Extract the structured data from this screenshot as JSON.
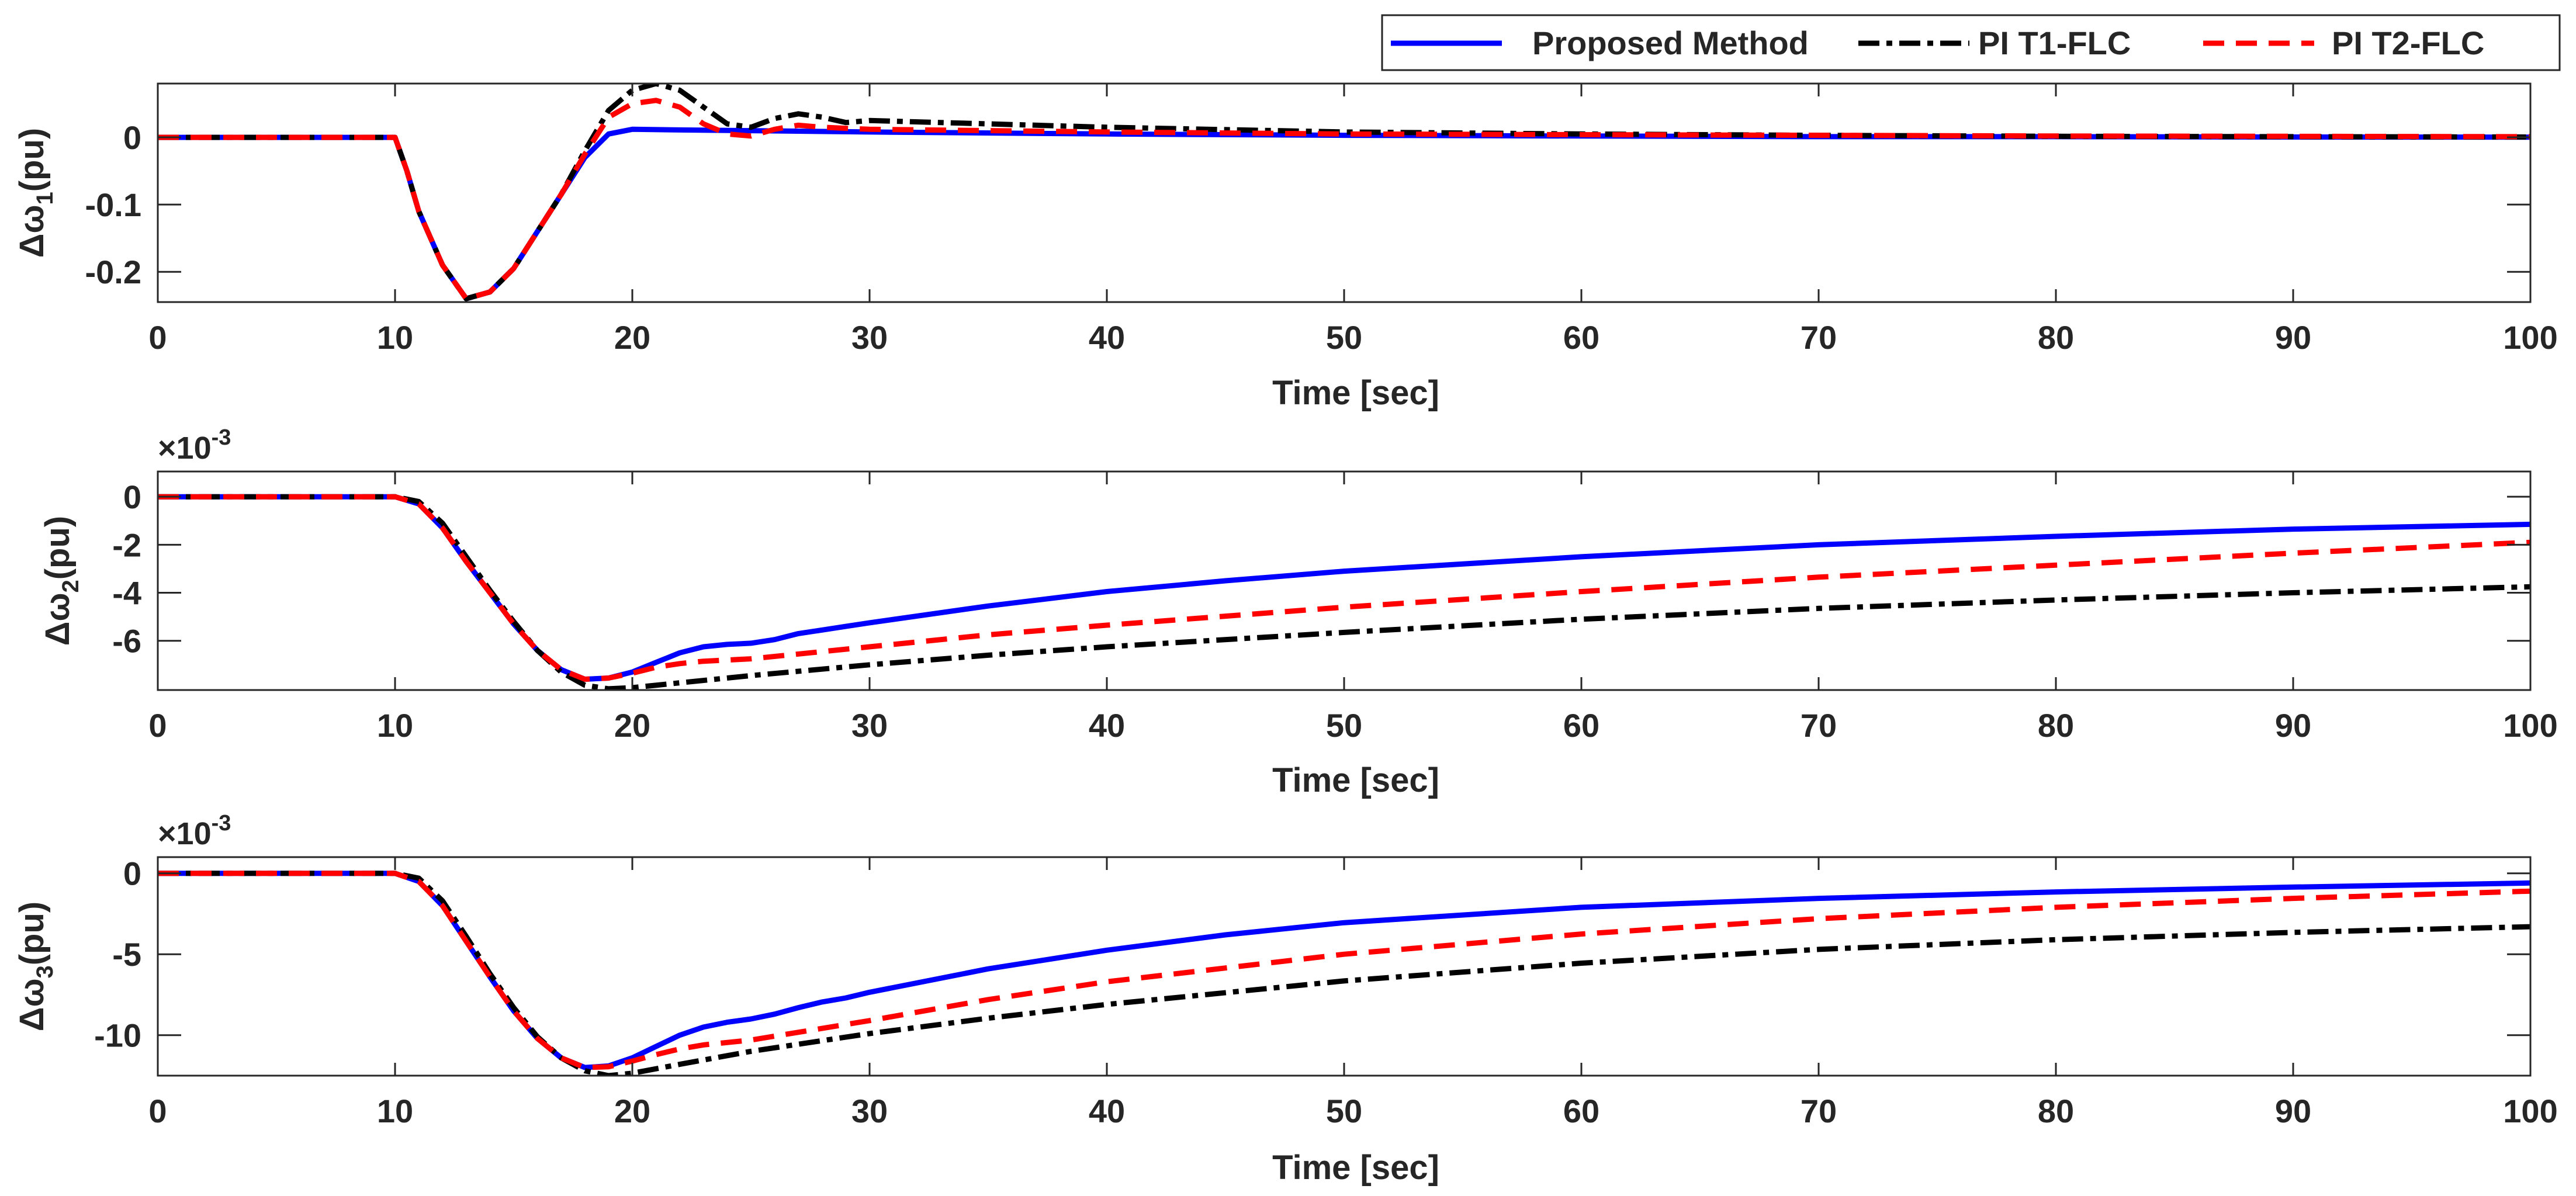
{
  "legend": [
    {
      "label": "Proposed Method",
      "color": "#0000ff",
      "dash": "solid"
    },
    {
      "label": "PI T1-FLC",
      "color": "#000000",
      "dash": "dashdot"
    },
    {
      "label": "PI T2-FLC",
      "color": "#ff0000",
      "dash": "dashed"
    }
  ],
  "chart_data": [
    {
      "type": "line",
      "xlabel": "Time [sec]",
      "ylabel_main": "Δω",
      "ylabel_sub": "1",
      "ylabel_unit": "(pu)",
      "exponent_label": "",
      "xlim": [
        0,
        100
      ],
      "ylim": [
        -0.245,
        0.08
      ],
      "xticks": [
        0,
        10,
        20,
        30,
        40,
        50,
        60,
        70,
        80,
        90,
        100
      ],
      "yticks": [
        0,
        -0.1,
        -0.2
      ],
      "ytick_labels": [
        "0",
        "-0.1",
        "-0.2"
      ],
      "series": [
        {
          "name": "Proposed Method",
          "color": "#0000ff",
          "dash": "solid",
          "points": [
            [
              0,
              0
            ],
            [
              10,
              0
            ],
            [
              10.5,
              -0.05
            ],
            [
              11,
              -0.11
            ],
            [
              12,
              -0.19
            ],
            [
              13,
              -0.24
            ],
            [
              14,
              -0.23
            ],
            [
              15,
              -0.195
            ],
            [
              16,
              -0.14
            ],
            [
              17,
              -0.085
            ],
            [
              18,
              -0.03
            ],
            [
              19,
              0.005
            ],
            [
              20,
              0.012
            ],
            [
              22,
              0.011
            ],
            [
              25,
              0.01
            ],
            [
              30,
              0.008
            ],
            [
              40,
              0.005
            ],
            [
              50,
              0.003
            ],
            [
              60,
              0.002
            ],
            [
              70,
              0.001
            ],
            [
              80,
              0.001
            ],
            [
              90,
              0.0005
            ],
            [
              100,
              0.0003
            ]
          ]
        },
        {
          "name": "PI T1-FLC",
          "color": "#000000",
          "dash": "dashdot",
          "points": [
            [
              0,
              0
            ],
            [
              10,
              0
            ],
            [
              10.5,
              -0.05
            ],
            [
              11,
              -0.11
            ],
            [
              12,
              -0.19
            ],
            [
              13,
              -0.24
            ],
            [
              14,
              -0.23
            ],
            [
              15,
              -0.195
            ],
            [
              16,
              -0.14
            ],
            [
              17,
              -0.085
            ],
            [
              18,
              -0.02
            ],
            [
              19,
              0.04
            ],
            [
              20,
              0.07
            ],
            [
              21,
              0.08
            ],
            [
              22,
              0.07
            ],
            [
              23,
              0.045
            ],
            [
              24,
              0.02
            ],
            [
              25,
              0.015
            ],
            [
              26,
              0.028
            ],
            [
              27,
              0.035
            ],
            [
              28,
              0.03
            ],
            [
              29,
              0.022
            ],
            [
              30,
              0.025
            ],
            [
              35,
              0.02
            ],
            [
              40,
              0.015
            ],
            [
              50,
              0.008
            ],
            [
              60,
              0.005
            ],
            [
              70,
              0.003
            ],
            [
              80,
              0.0015
            ],
            [
              90,
              0.001
            ],
            [
              100,
              0.0005
            ]
          ]
        },
        {
          "name": "PI T2-FLC",
          "color": "#ff0000",
          "dash": "dashed",
          "points": [
            [
              0,
              0
            ],
            [
              10,
              0
            ],
            [
              10.5,
              -0.05
            ],
            [
              11,
              -0.11
            ],
            [
              12,
              -0.19
            ],
            [
              13,
              -0.24
            ],
            [
              14,
              -0.23
            ],
            [
              15,
              -0.195
            ],
            [
              16,
              -0.14
            ],
            [
              17,
              -0.085
            ],
            [
              18,
              -0.025
            ],
            [
              19,
              0.03
            ],
            [
              20,
              0.05
            ],
            [
              21,
              0.055
            ],
            [
              22,
              0.045
            ],
            [
              23,
              0.02
            ],
            [
              24,
              0.005
            ],
            [
              25,
              0.002
            ],
            [
              26,
              0.012
            ],
            [
              27,
              0.018
            ],
            [
              28,
              0.015
            ],
            [
              30,
              0.012
            ],
            [
              40,
              0.008
            ],
            [
              50,
              0.005
            ],
            [
              60,
              0.004
            ],
            [
              70,
              0.003
            ],
            [
              80,
              0.002
            ],
            [
              90,
              0.0015
            ],
            [
              100,
              0.001
            ]
          ]
        }
      ]
    },
    {
      "type": "line",
      "xlabel": "Time [sec]",
      "ylabel_main": "Δω",
      "ylabel_sub": "2",
      "ylabel_unit": "(pu)",
      "exponent_label": "×10",
      "exponent_power": "-3",
      "xlim": [
        0,
        100
      ],
      "ylim": [
        -8.05,
        1.05
      ],
      "xticks": [
        0,
        10,
        20,
        30,
        40,
        50,
        60,
        70,
        80,
        90,
        100
      ],
      "yticks": [
        0,
        -2,
        -4,
        -6
      ],
      "ytick_labels": [
        "0",
        "-2",
        "-4",
        "-6"
      ],
      "series": [
        {
          "name": "Proposed Method",
          "color": "#0000ff",
          "dash": "solid",
          "points": [
            [
              0,
              0
            ],
            [
              10,
              0
            ],
            [
              11,
              -0.3
            ],
            [
              12,
              -1.3
            ],
            [
              13,
              -2.7
            ],
            [
              14,
              -4.0
            ],
            [
              15,
              -5.3
            ],
            [
              16,
              -6.4
            ],
            [
              17,
              -7.2
            ],
            [
              18,
              -7.6
            ],
            [
              19,
              -7.55
            ],
            [
              20,
              -7.3
            ],
            [
              21,
              -6.9
            ],
            [
              22,
              -6.5
            ],
            [
              23,
              -6.25
            ],
            [
              24,
              -6.15
            ],
            [
              25,
              -6.1
            ],
            [
              26,
              -5.95
            ],
            [
              27,
              -5.7
            ],
            [
              28,
              -5.55
            ],
            [
              29,
              -5.4
            ],
            [
              30,
              -5.25
            ],
            [
              35,
              -4.55
            ],
            [
              40,
              -3.95
            ],
            [
              45,
              -3.5
            ],
            [
              50,
              -3.1
            ],
            [
              60,
              -2.5
            ],
            [
              70,
              -2.0
            ],
            [
              80,
              -1.65
            ],
            [
              90,
              -1.35
            ],
            [
              100,
              -1.15
            ]
          ]
        },
        {
          "name": "PI T1-FLC",
          "color": "#000000",
          "dash": "dashdot",
          "points": [
            [
              0,
              0
            ],
            [
              10,
              0
            ],
            [
              11,
              -0.2
            ],
            [
              12,
              -1.1
            ],
            [
              13,
              -2.5
            ],
            [
              14,
              -3.9
            ],
            [
              15,
              -5.2
            ],
            [
              16,
              -6.4
            ],
            [
              17,
              -7.3
            ],
            [
              18,
              -7.85
            ],
            [
              19,
              -8.0
            ],
            [
              20,
              -7.95
            ],
            [
              22,
              -7.75
            ],
            [
              25,
              -7.45
            ],
            [
              30,
              -7.0
            ],
            [
              35,
              -6.6
            ],
            [
              40,
              -6.25
            ],
            [
              50,
              -5.65
            ],
            [
              60,
              -5.1
            ],
            [
              70,
              -4.65
            ],
            [
              80,
              -4.3
            ],
            [
              90,
              -4.0
            ],
            [
              100,
              -3.75
            ]
          ]
        },
        {
          "name": "PI T2-FLC",
          "color": "#ff0000",
          "dash": "dashed",
          "points": [
            [
              0,
              0
            ],
            [
              10,
              0
            ],
            [
              11,
              -0.3
            ],
            [
              12,
              -1.3
            ],
            [
              13,
              -2.7
            ],
            [
              14,
              -4.0
            ],
            [
              15,
              -5.3
            ],
            [
              16,
              -6.4
            ],
            [
              17,
              -7.2
            ],
            [
              18,
              -7.6
            ],
            [
              19,
              -7.55
            ],
            [
              20,
              -7.35
            ],
            [
              21,
              -7.1
            ],
            [
              22,
              -6.95
            ],
            [
              23,
              -6.85
            ],
            [
              25,
              -6.75
            ],
            [
              30,
              -6.25
            ],
            [
              35,
              -5.75
            ],
            [
              40,
              -5.35
            ],
            [
              50,
              -4.6
            ],
            [
              60,
              -3.95
            ],
            [
              70,
              -3.35
            ],
            [
              80,
              -2.85
            ],
            [
              90,
              -2.35
            ],
            [
              100,
              -1.9
            ]
          ]
        }
      ]
    },
    {
      "type": "line",
      "xlabel": "Time [sec]",
      "ylabel_main": "Δω",
      "ylabel_sub": "3",
      "ylabel_unit": "(pu)",
      "exponent_label": "×10",
      "exponent_power": "-3",
      "xlim": [
        0,
        100
      ],
      "ylim": [
        -12.5,
        1.0
      ],
      "xticks": [
        0,
        10,
        20,
        30,
        40,
        50,
        60,
        70,
        80,
        90,
        100
      ],
      "yticks": [
        0,
        -5,
        -10
      ],
      "ytick_labels": [
        "0",
        "-5",
        "-10"
      ],
      "series": [
        {
          "name": "Proposed Method",
          "color": "#0000ff",
          "dash": "solid",
          "points": [
            [
              0,
              0
            ],
            [
              10,
              0
            ],
            [
              11,
              -0.5
            ],
            [
              12,
              -2.0
            ],
            [
              13,
              -4.2
            ],
            [
              14,
              -6.4
            ],
            [
              15,
              -8.5
            ],
            [
              16,
              -10.2
            ],
            [
              17,
              -11.4
            ],
            [
              18,
              -12.0
            ],
            [
              19,
              -11.9
            ],
            [
              20,
              -11.4
            ],
            [
              21,
              -10.7
            ],
            [
              22,
              -10.0
            ],
            [
              23,
              -9.5
            ],
            [
              24,
              -9.2
            ],
            [
              25,
              -9.0
            ],
            [
              26,
              -8.7
            ],
            [
              27,
              -8.3
            ],
            [
              28,
              -7.95
            ],
            [
              29,
              -7.7
            ],
            [
              30,
              -7.35
            ],
            [
              35,
              -5.9
            ],
            [
              40,
              -4.75
            ],
            [
              45,
              -3.8
            ],
            [
              50,
              -3.05
            ],
            [
              60,
              -2.1
            ],
            [
              70,
              -1.55
            ],
            [
              80,
              -1.15
            ],
            [
              90,
              -0.85
            ],
            [
              100,
              -0.6
            ]
          ]
        },
        {
          "name": "PI T1-FLC",
          "color": "#000000",
          "dash": "dashdot",
          "points": [
            [
              0,
              0
            ],
            [
              10,
              0
            ],
            [
              11,
              -0.3
            ],
            [
              12,
              -1.7
            ],
            [
              13,
              -3.9
            ],
            [
              14,
              -6.2
            ],
            [
              15,
              -8.3
            ],
            [
              16,
              -10.1
            ],
            [
              17,
              -11.4
            ],
            [
              18,
              -12.2
            ],
            [
              19,
              -12.5
            ],
            [
              20,
              -12.35
            ],
            [
              22,
              -11.8
            ],
            [
              25,
              -11.0
            ],
            [
              30,
              -9.9
            ],
            [
              35,
              -8.95
            ],
            [
              40,
              -8.1
            ],
            [
              50,
              -6.65
            ],
            [
              60,
              -5.55
            ],
            [
              70,
              -4.7
            ],
            [
              80,
              -4.1
            ],
            [
              90,
              -3.65
            ],
            [
              100,
              -3.3
            ]
          ]
        },
        {
          "name": "PI T2-FLC",
          "color": "#ff0000",
          "dash": "dashed",
          "points": [
            [
              0,
              0
            ],
            [
              10,
              0
            ],
            [
              11,
              -0.5
            ],
            [
              12,
              -2.0
            ],
            [
              13,
              -4.2
            ],
            [
              14,
              -6.4
            ],
            [
              15,
              -8.5
            ],
            [
              16,
              -10.2
            ],
            [
              17,
              -11.4
            ],
            [
              18,
              -12.0
            ],
            [
              19,
              -11.95
            ],
            [
              20,
              -11.6
            ],
            [
              21,
              -11.2
            ],
            [
              22,
              -10.85
            ],
            [
              23,
              -10.6
            ],
            [
              25,
              -10.3
            ],
            [
              30,
              -9.1
            ],
            [
              35,
              -7.8
            ],
            [
              40,
              -6.7
            ],
            [
              50,
              -5.0
            ],
            [
              60,
              -3.75
            ],
            [
              70,
              -2.8
            ],
            [
              80,
              -2.1
            ],
            [
              90,
              -1.55
            ],
            [
              100,
              -1.1
            ]
          ]
        }
      ]
    }
  ]
}
